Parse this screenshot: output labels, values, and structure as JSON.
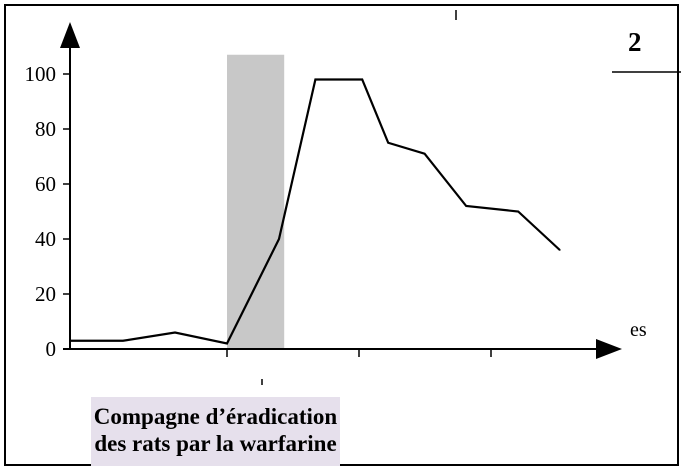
{
  "figure": {
    "badge": "2",
    "x_axis_fragment": "es"
  },
  "caption": {
    "line1": "Compagne  d’éradication",
    "line2": "des rats par la warfarine"
  },
  "colors": {
    "line": "#000000",
    "band": "#c8c8c8",
    "caption_bg": "#e6e0ec"
  },
  "chart_data": {
    "type": "line",
    "title": "",
    "xlabel": "",
    "ylabel": "",
    "ylim": [
      0,
      110
    ],
    "yticks": [
      0,
      20,
      40,
      60,
      80,
      100
    ],
    "xlim": [
      0,
      11.5
    ],
    "x": [
      0,
      1,
      2,
      3,
      4,
      4.7,
      5.1,
      5.6,
      6.1,
      6.8,
      7.6,
      8.6,
      9.4
    ],
    "y": [
      3,
      3,
      6,
      2,
      40,
      98,
      98,
      98,
      75,
      71,
      52,
      50,
      36
    ],
    "highlight_band": {
      "x_from": 3,
      "x_to": 4.1,
      "y_to": 107
    }
  }
}
